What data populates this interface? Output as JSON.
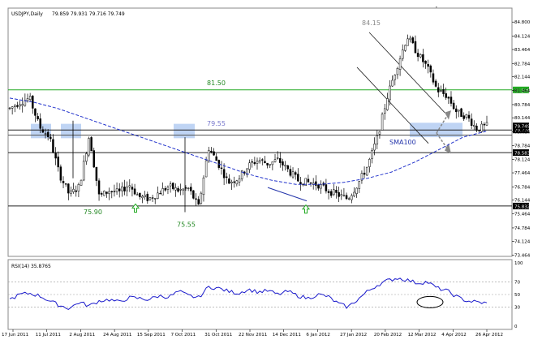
{
  "chart_data": [
    {
      "type": "candlestick",
      "title": "USDJPY,Daily",
      "ohlc_label": "79.859 79.931 79.716 79.749",
      "ylim": [
        73.4,
        85.4
      ],
      "y_ticks": [
        "84.800",
        "84.124",
        "83.464",
        "82.784",
        "82.144",
        "81.464",
        "80.784",
        "80.144",
        "79.464",
        "78.784",
        "78.124",
        "77.464",
        "76.784",
        "76.144",
        "75.464",
        "74.784",
        "74.124",
        "73.464"
      ],
      "x_ticks": [
        "17 Jun 2011",
        "11 Jul 2011",
        "2 Aug 2011",
        "24 Aug 2011",
        "15 Sep 2011",
        "7 Oct 2011",
        "31 Oct 2011",
        "22 Nov 2011",
        "14 Dec 2011",
        "6 Jan 2012",
        "27 Jan 2012",
        "20 Feb 2012",
        "12 Mar 2012",
        "4 Apr 2012",
        "26 Apr 2012"
      ],
      "series": [
        {
          "name": "SMA100",
          "color": "#2233cc",
          "style": "dashed",
          "values": [
            81.1,
            80.9,
            80.6,
            80.2,
            79.8,
            79.4,
            79.0,
            78.6,
            78.2,
            77.8,
            77.4,
            77.1,
            76.9,
            76.9,
            77.0,
            77.2,
            77.5,
            78.0,
            78.6,
            79.2,
            79.5
          ]
        }
      ],
      "price_path": [
        80.6,
        80.9,
        81.1,
        79.7,
        79.2,
        77.4,
        76.4,
        76.8,
        79.3,
        76.3,
        76.6,
        76.5,
        76.9,
        76.3,
        76.2,
        76.5,
        76.8,
        76.6,
        76.7,
        75.8,
        78.7,
        77.9,
        77.0,
        77.2,
        77.8,
        78.1,
        77.9,
        78.1,
        77.6,
        77.1,
        77.0,
        76.9,
        76.6,
        76.4,
        76.2,
        76.9,
        77.8,
        79.2,
        81.2,
        82.7,
        84.1,
        83.3,
        82.6,
        81.5,
        81.2,
        80.4,
        80.2,
        79.6,
        79.75
      ],
      "levels": [
        {
          "label": "81.50",
          "value": 81.5,
          "color": "#22aa22",
          "tag": "81.500"
        },
        {
          "label": "79.55",
          "value": 79.55,
          "color": "#222222",
          "tag": "79.724"
        },
        {
          "label": "",
          "value": 78.45,
          "color": "#222222",
          "tag": "78.583"
        },
        {
          "label": "",
          "value": 75.85,
          "color": "#222222",
          "tag": "75.832"
        }
      ],
      "price_tags": [
        "79.749",
        "79.724"
      ],
      "annotations": [
        "84.15",
        "75.90",
        "75.55",
        "SMA100"
      ]
    },
    {
      "type": "line",
      "title": "RSI(14) 35.8765",
      "ylim": [
        0,
        100
      ],
      "y_ticks": [
        "100",
        "70",
        "50",
        "30",
        "0"
      ],
      "reference_levels": [
        70,
        50,
        30
      ],
      "values": [
        42,
        50,
        52,
        48,
        40,
        33,
        28,
        38,
        32,
        40,
        42,
        38,
        45,
        44,
        42,
        48,
        46,
        55,
        48,
        45,
        62,
        60,
        55,
        52,
        58,
        54,
        56,
        50,
        55,
        48,
        44,
        50,
        47,
        36,
        30,
        42,
        55,
        65,
        72,
        76,
        73,
        68,
        70,
        60,
        56,
        46,
        40,
        38,
        36
      ],
      "line_color": "#1a1acc"
    }
  ]
}
